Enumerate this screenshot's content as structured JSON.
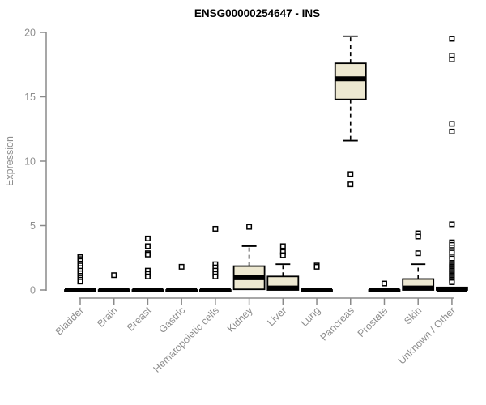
{
  "header": {
    "title": "ENSG00000254647 - INS"
  },
  "chart_data": {
    "type": "boxplot",
    "title": "ENSG00000254647 - INS",
    "xlabel": "",
    "ylabel": "Expression",
    "ylim": [
      0,
      20
    ],
    "yticks": [
      0,
      5,
      10,
      15,
      20
    ],
    "grid": false,
    "legend": "none",
    "colors": {
      "box_fill": "#EDE8D1",
      "box_stroke": "#000000",
      "median": "#000000",
      "axis": "#8A8A8A",
      "tick_label": "#8E8E8E",
      "title": "#000000",
      "background": "#FFFFFF"
    },
    "categories": [
      "Bladder",
      "Brain",
      "Breast",
      "Gastric",
      "Hematopoietic cells",
      "Kidney",
      "Liver",
      "Lung",
      "Pancreas",
      "Prostate",
      "Skin",
      "Unknown / Other"
    ],
    "series": [
      {
        "name": "Bladder",
        "q1": 0,
        "median": 0,
        "q3": 0,
        "whisker_low": 0,
        "whisker_high": 0,
        "outliers": [
          2.55,
          2.4,
          2.25,
          2.05,
          1.9,
          1.7,
          1.5,
          1.3,
          1.1,
          0.95,
          0.8,
          0.65
        ]
      },
      {
        "name": "Brain",
        "q1": 0,
        "median": 0,
        "q3": 0,
        "whisker_low": 0,
        "whisker_high": 0,
        "outliers": [
          1.15
        ]
      },
      {
        "name": "Breast",
        "q1": 0,
        "median": 0,
        "q3": 0,
        "whisker_low": 0,
        "whisker_high": 0,
        "outliers": [
          4.0,
          3.4,
          2.85,
          2.75,
          1.5,
          1.25,
          1.05
        ]
      },
      {
        "name": "Gastric",
        "q1": 0,
        "median": 0,
        "q3": 0,
        "whisker_low": 0,
        "whisker_high": 0,
        "outliers": [
          1.8
        ]
      },
      {
        "name": "Hematopoietic cells",
        "q1": 0,
        "median": 0,
        "q3": 0,
        "whisker_low": 0,
        "whisker_high": 0,
        "outliers": [
          4.75,
          2.0,
          1.75,
          1.5,
          1.25,
          1.05
        ]
      },
      {
        "name": "Kidney",
        "q1": 0.05,
        "median": 0.95,
        "q3": 1.85,
        "whisker_low": 0.05,
        "whisker_high": 3.4,
        "outliers": [
          4.9
        ]
      },
      {
        "name": "Liver",
        "q1": 0,
        "median": 0.15,
        "q3": 1.05,
        "whisker_low": 0,
        "whisker_high": 2.0,
        "outliers": [
          3.4,
          2.95,
          2.7
        ]
      },
      {
        "name": "Lung",
        "q1": 0,
        "median": 0,
        "q3": 0,
        "whisker_low": 0,
        "whisker_high": 0,
        "outliers": [
          1.9,
          1.8
        ]
      },
      {
        "name": "Pancreas",
        "q1": 14.8,
        "median": 16.4,
        "q3": 17.6,
        "whisker_low": 11.6,
        "whisker_high": 19.7,
        "outliers": [
          9.0,
          8.2
        ]
      },
      {
        "name": "Prostate",
        "q1": 0,
        "median": 0,
        "q3": 0,
        "whisker_low": 0,
        "whisker_high": 0,
        "outliers": [
          0.5
        ]
      },
      {
        "name": "Skin",
        "q1": 0,
        "median": 0.15,
        "q3": 0.85,
        "whisker_low": 0,
        "whisker_high": 2.0,
        "outliers": [
          4.4,
          4.15,
          2.85
        ]
      },
      {
        "name": "Unknown / Other",
        "q1": 0,
        "median": 0.05,
        "q3": 0.2,
        "whisker_low": 0,
        "whisker_high": 0.2,
        "outliers": [
          19.5,
          18.2,
          17.9,
          12.9,
          12.3,
          5.1,
          3.7,
          3.5,
          3.3,
          3.1,
          2.9,
          2.6,
          2.45,
          2.1,
          2.0,
          1.9,
          1.8,
          1.7,
          1.6,
          1.5,
          1.4,
          1.3,
          1.2,
          1.1,
          1.0,
          0.9,
          0.8,
          0.7,
          0.6
        ]
      }
    ]
  }
}
